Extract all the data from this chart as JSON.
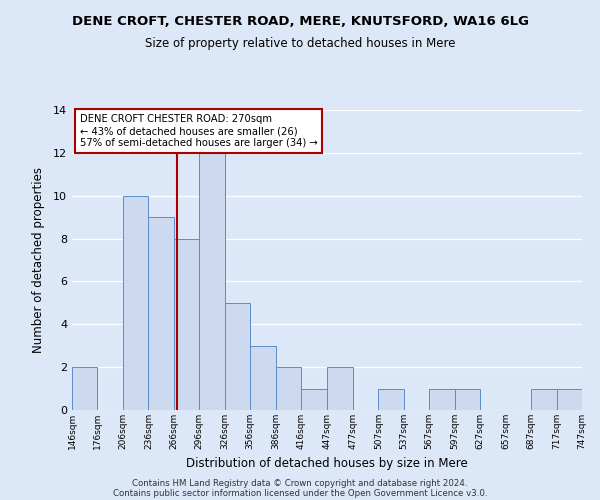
{
  "title": "DENE CROFT, CHESTER ROAD, MERE, KNUTSFORD, WA16 6LG",
  "subtitle": "Size of property relative to detached houses in Mere",
  "xlabel": "Distribution of detached houses by size in Mere",
  "ylabel": "Number of detached properties",
  "bin_edges": [
    146,
    176,
    206,
    236,
    266,
    296,
    326,
    356,
    386,
    416,
    447,
    477,
    507,
    537,
    567,
    597,
    627,
    657,
    687,
    717,
    747
  ],
  "counts": [
    2,
    0,
    10,
    9,
    8,
    12,
    5,
    3,
    2,
    1,
    2,
    0,
    1,
    0,
    1,
    1,
    0,
    0,
    1,
    1
  ],
  "bar_color": "#ccd9ef",
  "bar_edge_color": "#5b8dc8",
  "subject_value": 270,
  "subject_line_color": "#aa0000",
  "annotation_line1": "DENE CROFT CHESTER ROAD: 270sqm",
  "annotation_line2": "← 43% of detached houses are smaller (26)",
  "annotation_line3": "57% of semi-detached houses are larger (34) →",
  "annotation_box_color": "white",
  "annotation_box_edge": "#aa0000",
  "ylim": [
    0,
    14
  ],
  "yticks": [
    0,
    2,
    4,
    6,
    8,
    10,
    12,
    14
  ],
  "tick_labels": [
    "146sqm",
    "176sqm",
    "206sqm",
    "236sqm",
    "266sqm",
    "296sqm",
    "326sqm",
    "356sqm",
    "386sqm",
    "416sqm",
    "447sqm",
    "477sqm",
    "507sqm",
    "537sqm",
    "567sqm",
    "597sqm",
    "627sqm",
    "657sqm",
    "687sqm",
    "717sqm",
    "747sqm"
  ],
  "footer1": "Contains HM Land Registry data © Crown copyright and database right 2024.",
  "footer2": "Contains public sector information licensed under the Open Government Licence v3.0.",
  "bg_color": "#dce8f8",
  "grid_color": "white",
  "title_fontsize": 9.5,
  "subtitle_fontsize": 8.5
}
